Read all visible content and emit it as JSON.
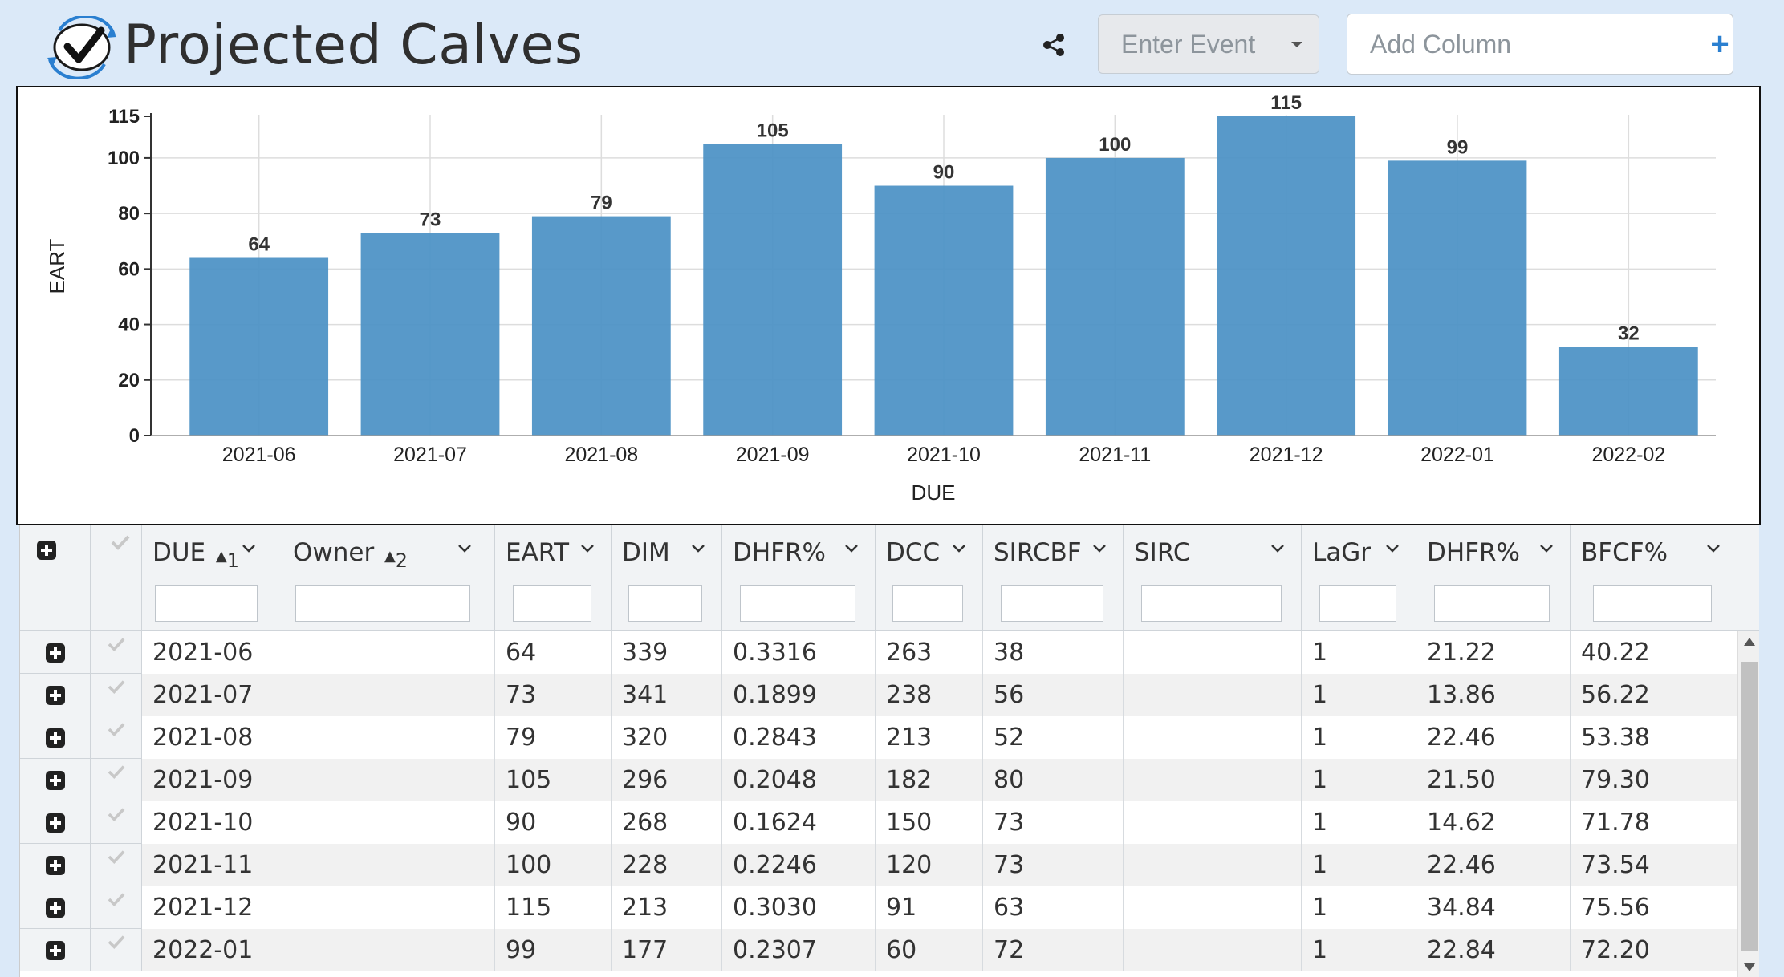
{
  "page": {
    "title": "Projected Calves"
  },
  "toolbar": {
    "share_icon": "share-icon",
    "event_label": "Enter Event",
    "add_column_placeholder": "Add Column",
    "add_column_icon": "plus-icon",
    "accent_color": "#2a7fd0"
  },
  "chart_data": {
    "type": "bar",
    "categories": [
      "2021-06",
      "2021-07",
      "2021-08",
      "2021-09",
      "2021-10",
      "2021-11",
      "2021-12",
      "2022-01",
      "2022-02"
    ],
    "values": [
      64,
      73,
      79,
      105,
      90,
      100,
      115,
      99,
      32
    ],
    "xlabel": "DUE",
    "ylabel": "EART",
    "ylim": [
      0,
      115
    ],
    "yticks": [
      0,
      20,
      40,
      60,
      80,
      100,
      115
    ],
    "grid": true,
    "bar_color": "#4a90c4"
  },
  "grid": {
    "columns": [
      {
        "key": "due",
        "label": "DUE",
        "sort": "1"
      },
      {
        "key": "owner",
        "label": "Owner",
        "sort": "2"
      },
      {
        "key": "eart",
        "label": "EART"
      },
      {
        "key": "dim",
        "label": "DIM"
      },
      {
        "key": "dhfr1",
        "label": "DHFR%"
      },
      {
        "key": "dcc",
        "label": "DCC"
      },
      {
        "key": "sircbf",
        "label": "SIRCBF"
      },
      {
        "key": "sirc",
        "label": "SIRC"
      },
      {
        "key": "lagr",
        "label": "LaGr"
      },
      {
        "key": "dhfr2",
        "label": "DHFR%"
      },
      {
        "key": "bfcf",
        "label": "BFCF%"
      }
    ],
    "rows": [
      [
        "2021-06",
        "",
        "64",
        "339",
        "0.3316",
        "263",
        "38",
        "",
        "1",
        "21.22",
        "40.22"
      ],
      [
        "2021-07",
        "",
        "73",
        "341",
        "0.1899",
        "238",
        "56",
        "",
        "1",
        "13.86",
        "56.22"
      ],
      [
        "2021-08",
        "",
        "79",
        "320",
        "0.2843",
        "213",
        "52",
        "",
        "1",
        "22.46",
        "53.38"
      ],
      [
        "2021-09",
        "",
        "105",
        "296",
        "0.2048",
        "182",
        "80",
        "",
        "1",
        "21.50",
        "79.30"
      ],
      [
        "2021-10",
        "",
        "90",
        "268",
        "0.1624",
        "150",
        "73",
        "",
        "1",
        "14.62",
        "71.78"
      ],
      [
        "2021-11",
        "",
        "100",
        "228",
        "0.2246",
        "120",
        "73",
        "",
        "1",
        "22.46",
        "73.54"
      ],
      [
        "2021-12",
        "",
        "115",
        "213",
        "0.3030",
        "91",
        "63",
        "",
        "1",
        "34.84",
        "75.56"
      ],
      [
        "2022-01",
        "",
        "99",
        "177",
        "0.2307",
        "60",
        "72",
        "",
        "1",
        "22.84",
        "72.20"
      ]
    ]
  }
}
